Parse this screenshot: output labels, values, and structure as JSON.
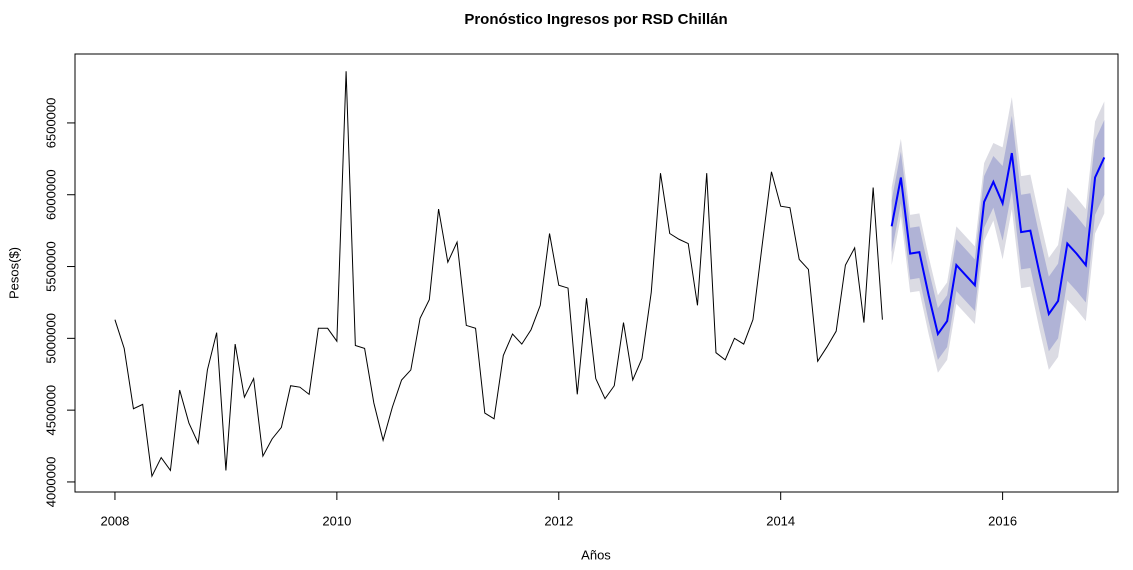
{
  "chart_data": {
    "type": "forecast",
    "title": "Pronóstico Ingresos por RSD Chillán",
    "x_label": "Años",
    "y_label": "Pesos($)",
    "xlim": [
      2007.64,
      2017.04
    ],
    "ylim": [
      3930000,
      6980000
    ],
    "xticks": [
      2008,
      2010,
      2012,
      2014,
      2016
    ],
    "yticks": [
      4000000,
      4500000,
      5000000,
      5500000,
      6000000,
      6500000
    ],
    "series": [
      {
        "color": "#000000",
        "x": [
          2008,
          2008.0833,
          2008.1667,
          2008.25,
          2008.3333,
          2008.4167,
          2008.5,
          2008.5833,
          2008.6667,
          2008.75,
          2008.8333,
          2008.9167,
          2009,
          2009.0833,
          2009.1667,
          2009.25,
          2009.3333,
          2009.4167,
          2009.5,
          2009.5833,
          2009.6667,
          2009.75,
          2009.8333,
          2009.9167,
          2010,
          2010.0833,
          2010.1667,
          2010.25,
          2010.3333,
          2010.4167,
          2010.5,
          2010.5833,
          2010.6667,
          2010.75,
          2010.8333,
          2010.9167,
          2011,
          2011.0833,
          2011.1667,
          2011.25,
          2011.3333,
          2011.4167,
          2011.5,
          2011.5833,
          2011.6667,
          2011.75,
          2011.8333,
          2011.9167,
          2012,
          2012.0833,
          2012.1667,
          2012.25,
          2012.3333,
          2012.4167,
          2012.5,
          2012.5833,
          2012.6667,
          2012.75,
          2012.8333,
          2012.9167,
          2013,
          2013.0833,
          2013.1667,
          2013.25,
          2013.3333,
          2013.4167,
          2013.5,
          2013.5833,
          2013.6667,
          2013.75,
          2013.8333,
          2013.9167,
          2014,
          2014.0833,
          2014.1667,
          2014.25,
          2014.3333,
          2014.4167,
          2014.5,
          2014.5833,
          2014.6667,
          2014.75,
          2014.8333,
          2014.9167
        ],
        "values": [
          5130000,
          4930000,
          4510000,
          4540000,
          4040000,
          4170000,
          4080000,
          4640000,
          4410000,
          4270000,
          4780000,
          5040000,
          4080000,
          4960000,
          4590000,
          4720000,
          4180000,
          4300000,
          4380000,
          4670000,
          4660000,
          4610000,
          5070000,
          5070000,
          4980000,
          6860000,
          4950000,
          4930000,
          4550000,
          4290000,
          4520000,
          4710000,
          4780000,
          5140000,
          5270000,
          5900000,
          5530000,
          5670000,
          5090000,
          5070000,
          4480000,
          4440000,
          4880000,
          5030000,
          4960000,
          5060000,
          5230000,
          5730000,
          5370000,
          5350000,
          4610000,
          5280000,
          4720000,
          4580000,
          4670000,
          5110000,
          4710000,
          4860000,
          5320000,
          6150000,
          5730000,
          5690000,
          5660000,
          5230000,
          6150000,
          4900000,
          4850000,
          5000000,
          4960000,
          5130000,
          5650000,
          6160000,
          5920000,
          5910000,
          5550000,
          5480000,
          4840000,
          4940000,
          5050000,
          5510000,
          5630000,
          5110000,
          6050000,
          5130000
        ]
      },
      {
        "color": "#0000ff",
        "x": [
          2015,
          2015.0833,
          2015.1667,
          2015.25,
          2015.3333,
          2015.4167,
          2015.5,
          2015.5833,
          2015.6667,
          2015.75,
          2015.8333,
          2015.9167,
          2016,
          2016.0833,
          2016.1667,
          2016.25,
          2016.3333,
          2016.4167,
          2016.5,
          2016.5833,
          2016.6667,
          2016.75,
          2016.8333,
          2016.9167
        ],
        "values": [
          5780000,
          6120000,
          5590000,
          5600000,
          5300000,
          5030000,
          5120000,
          5510000,
          5440000,
          5370000,
          5950000,
          6090000,
          5940000,
          6290000,
          5740000,
          5750000,
          5450000,
          5170000,
          5260000,
          5660000,
          5590000,
          5510000,
          6120000,
          6260000
        ],
        "bands": [
          {
            "color": "#dbdbe3",
            "lower": [
              5510000,
              5850000,
              5320000,
              5330000,
              5030000,
              4760000,
              4850000,
              5240000,
              5170000,
              5100000,
              5680000,
              5820000,
              5550000,
              5900000,
              5350000,
              5360000,
              5060000,
              4780000,
              4870000,
              5270000,
              5200000,
              5120000,
              5730000,
              5870000
            ],
            "upper": [
              6050000,
              6390000,
              5860000,
              5870000,
              5570000,
              5300000,
              5390000,
              5780000,
              5710000,
              5640000,
              6220000,
              6360000,
              6330000,
              6680000,
              6130000,
              6140000,
              5840000,
              5560000,
              5650000,
              6050000,
              5980000,
              5900000,
              6510000,
              6650000
            ]
          },
          {
            "color": "#b0b3d6",
            "lower": [
              5600000,
              5940000,
              5410000,
              5420000,
              5120000,
              4850000,
              4940000,
              5330000,
              5260000,
              5190000,
              5770000,
              5910000,
              5680000,
              6030000,
              5480000,
              5490000,
              5190000,
              4910000,
              5000000,
              5400000,
              5330000,
              5250000,
              5860000,
              6000000
            ],
            "upper": [
              5960000,
              6300000,
              5770000,
              5780000,
              5480000,
              5210000,
              5300000,
              5690000,
              5620000,
              5550000,
              6130000,
              6270000,
              6200000,
              6550000,
              6000000,
              6010000,
              5710000,
              5430000,
              5520000,
              5920000,
              5850000,
              5770000,
              6380000,
              6520000
            ]
          }
        ]
      }
    ]
  }
}
